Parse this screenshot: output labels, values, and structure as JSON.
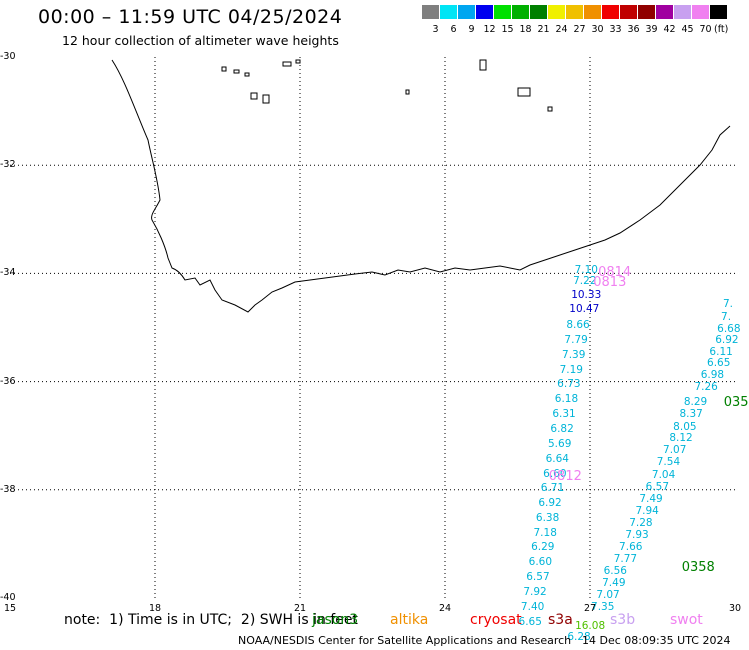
{
  "header": {
    "title": "00:00 – 11:59 UTC 04/25/2024",
    "subtitle": "12 hour collection of altimeter wave heights"
  },
  "legend": {
    "unit": "(ft)",
    "items": [
      {
        "label": "3",
        "color": "#7f7f7f"
      },
      {
        "label": "6",
        "color": "#00e5f5"
      },
      {
        "label": "9",
        "color": "#00a6f0"
      },
      {
        "label": "12",
        "color": "#0000f0"
      },
      {
        "label": "15",
        "color": "#00e000"
      },
      {
        "label": "18",
        "color": "#00b000"
      },
      {
        "label": "21",
        "color": "#008000"
      },
      {
        "label": "24",
        "color": "#f0f000"
      },
      {
        "label": "27",
        "color": "#f0c000"
      },
      {
        "label": "30",
        "color": "#f09000"
      },
      {
        "label": "33",
        "color": "#f00000"
      },
      {
        "label": "36",
        "color": "#c00000"
      },
      {
        "label": "39",
        "color": "#900000"
      },
      {
        "label": "42",
        "color": "#a000a0"
      },
      {
        "label": "45",
        "color": "#c8a0f0"
      },
      {
        "label": "70",
        "color": "#f080f0"
      },
      {
        "label": "",
        "color": "#000000"
      }
    ]
  },
  "axes": {
    "lon_labels": [
      "15",
      "18",
      "21",
      "24",
      "27",
      "30"
    ],
    "lat_labels": [
      "-30",
      "-32",
      "-34",
      "-36",
      "-38",
      "-40"
    ],
    "lon_range": [
      15,
      30
    ],
    "lat_range": [
      -40,
      -30
    ]
  },
  "track_a": {
    "color": "#00b4d8",
    "values": [
      {
        "lon": 26.95,
        "lat": -33.96,
        "v": "7.10"
      },
      {
        "lon": 26.92,
        "lat": -34.15,
        "v": "7.22"
      },
      {
        "lon": 26.88,
        "lat": -34.42,
        "v": "10.33",
        "c": "#0000c8"
      },
      {
        "lon": 26.84,
        "lat": -34.68,
        "v": "10.47",
        "c": "#0000c8"
      },
      {
        "lon": 26.78,
        "lat": -34.97,
        "v": "8.66"
      },
      {
        "lon": 26.74,
        "lat": -35.25,
        "v": "7.79"
      },
      {
        "lon": 26.69,
        "lat": -35.52,
        "v": "7.39"
      },
      {
        "lon": 26.64,
        "lat": -35.8,
        "v": "7.19"
      },
      {
        "lon": 26.59,
        "lat": -36.07,
        "v": "6.73"
      },
      {
        "lon": 26.54,
        "lat": -36.34,
        "v": "6.18"
      },
      {
        "lon": 26.49,
        "lat": -36.62,
        "v": "6.31"
      },
      {
        "lon": 26.45,
        "lat": -36.89,
        "v": "6.82"
      },
      {
        "lon": 26.4,
        "lat": -37.17,
        "v": "5.69"
      },
      {
        "lon": 26.35,
        "lat": -37.44,
        "v": "6.64"
      },
      {
        "lon": 26.3,
        "lat": -37.72,
        "v": "6.60"
      },
      {
        "lon": 26.25,
        "lat": -37.99,
        "v": "6.71"
      },
      {
        "lon": 26.2,
        "lat": -38.26,
        "v": "6.92"
      },
      {
        "lon": 26.15,
        "lat": -38.54,
        "v": "6.38"
      },
      {
        "lon": 26.1,
        "lat": -38.81,
        "v": "7.18"
      },
      {
        "lon": 26.05,
        "lat": -39.08,
        "v": "6.29"
      },
      {
        "lon": 26.0,
        "lat": -39.36,
        "v": "6.60"
      },
      {
        "lon": 25.95,
        "lat": -39.63,
        "v": "6.57"
      },
      {
        "lon": 25.89,
        "lat": -39.91,
        "v": "7.92"
      },
      {
        "lon": 25.84,
        "lat": -40.18,
        "v": "7.40"
      },
      {
        "lon": 25.79,
        "lat": -40.46,
        "v": "6.65"
      }
    ]
  },
  "track_b": {
    "color": "#00b4d8",
    "values": [
      {
        "lon": 30.02,
        "lat": -34.58,
        "v": "7."
      },
      {
        "lon": 29.98,
        "lat": -34.82,
        "v": "7."
      },
      {
        "lon": 29.9,
        "lat": -35.04,
        "v": "6.68"
      },
      {
        "lon": 29.86,
        "lat": -35.25,
        "v": "6.92"
      },
      {
        "lon": 29.74,
        "lat": -35.47,
        "v": "6.11"
      },
      {
        "lon": 29.69,
        "lat": -35.68,
        "v": "6.65"
      },
      {
        "lon": 29.56,
        "lat": -35.9,
        "v": "6.98"
      },
      {
        "lon": 29.43,
        "lat": -36.12,
        "v": "7.26"
      },
      {
        "lon": 29.21,
        "lat": -36.4,
        "v": "8.29"
      },
      {
        "lon": 29.12,
        "lat": -36.62,
        "v": "8.37"
      },
      {
        "lon": 28.99,
        "lat": -36.85,
        "v": "8.05"
      },
      {
        "lon": 28.91,
        "lat": -37.07,
        "v": "8.12"
      },
      {
        "lon": 28.78,
        "lat": -37.29,
        "v": "7.07"
      },
      {
        "lon": 28.65,
        "lat": -37.51,
        "v": "7.54"
      },
      {
        "lon": 28.55,
        "lat": -37.74,
        "v": "7.04"
      },
      {
        "lon": 28.42,
        "lat": -37.96,
        "v": "6.57"
      },
      {
        "lon": 28.29,
        "lat": -38.18,
        "v": "7.49"
      },
      {
        "lon": 28.21,
        "lat": -38.41,
        "v": "7.94"
      },
      {
        "lon": 28.08,
        "lat": -38.63,
        "v": "7.28"
      },
      {
        "lon": 28.0,
        "lat": -38.85,
        "v": "7.93"
      },
      {
        "lon": 27.87,
        "lat": -39.07,
        "v": "7.66"
      },
      {
        "lon": 27.76,
        "lat": -39.3,
        "v": "7.77"
      },
      {
        "lon": 27.55,
        "lat": -39.52,
        "v": "6.56"
      },
      {
        "lon": 27.52,
        "lat": -39.74,
        "v": "7.49"
      },
      {
        "lon": 27.4,
        "lat": -39.96,
        "v": "7.07"
      },
      {
        "lon": 27.29,
        "lat": -40.18,
        "v": "7.35"
      },
      {
        "lon": 26.96,
        "lat": -40.54,
        "v": "16.08",
        "c": "#50c000"
      },
      {
        "lon": 26.8,
        "lat": -40.74,
        "v": "6.28"
      }
    ]
  },
  "time_labels": [
    {
      "lon": 27.25,
      "lat": -34.0,
      "v": "0814",
      "c": "#f080f0"
    },
    {
      "lon": 27.15,
      "lat": -34.18,
      "v": "0813",
      "c": "#f080f0"
    },
    {
      "lon": 26.23,
      "lat": -37.77,
      "v": "0812",
      "c": "#f080f0"
    },
    {
      "lon": 28.98,
      "lat": -39.45,
      "v": "0358",
      "c": "#008000"
    },
    {
      "lon": 29.85,
      "lat": -36.4,
      "v": "035",
      "c": "#008000"
    }
  ],
  "footer": {
    "note": "note:  1) Time is in UTC;  2) SWH is in feet",
    "satellites": [
      {
        "name": "jason3",
        "color": "#008000"
      },
      {
        "name": "altika",
        "color": "#f09000"
      },
      {
        "name": "cryosat",
        "color": "#f00000"
      },
      {
        "name": "s3a",
        "color": "#900000"
      },
      {
        "name": "s3b",
        "color": "#c8a0f0"
      },
      {
        "name": "swot",
        "color": "#f080f0"
      }
    ],
    "credit": "NOAA/NESDIS Center for Satellite Applications and Research",
    "timestamp": "14 Dec 08:09:35 UTC 2024"
  }
}
